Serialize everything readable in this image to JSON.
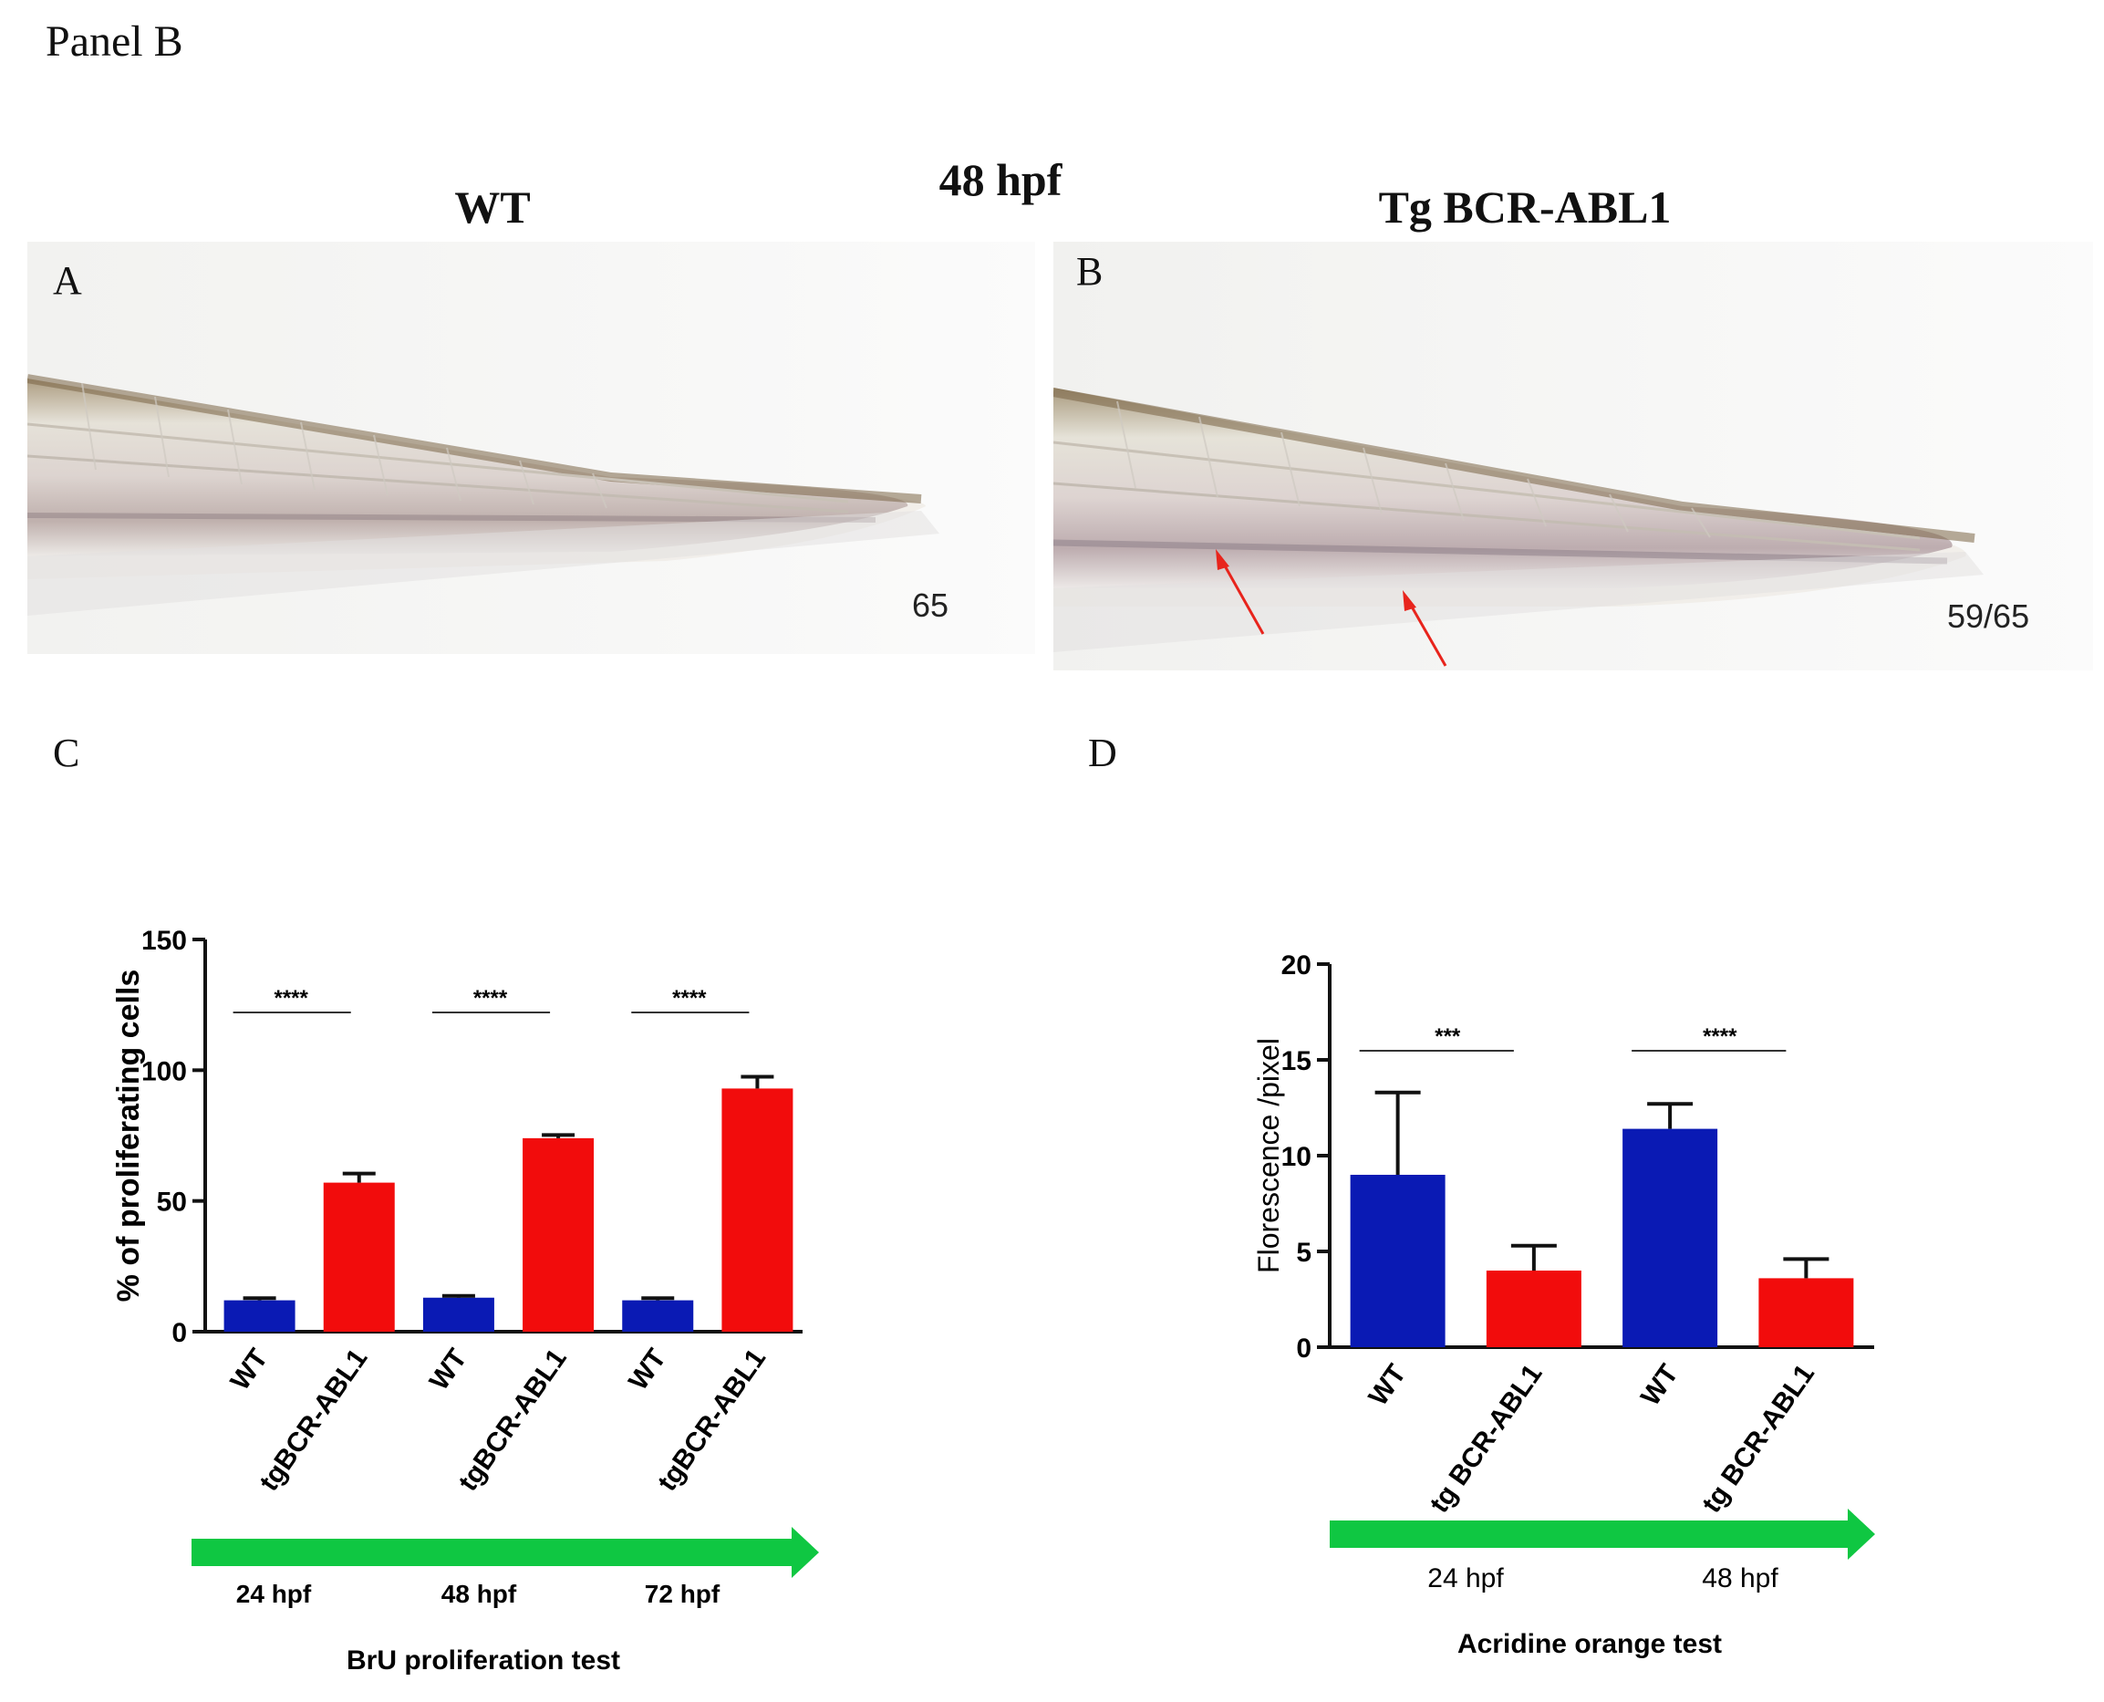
{
  "panel": {
    "title": "Panel B",
    "time_title": "48 hpf",
    "wt_title": "WT",
    "tg_title": "Tg BCR-ABL1",
    "letters": [
      "A",
      "B",
      "C",
      "D"
    ],
    "photo_a_count": "65",
    "photo_b_count": "59/65"
  },
  "colors": {
    "wt": "#0a1ab4",
    "tg": "#f20c0c",
    "arrow": "#0fc742",
    "annot_arrow": "#e8241c"
  },
  "chart_data": [
    {
      "type": "bar",
      "id": "C",
      "ylabel": "% of proliferating cells",
      "ylim": [
        0,
        150
      ],
      "yticks": [
        0,
        50,
        100,
        150
      ],
      "categories": [
        "WT",
        "tgBCR-ABL1",
        "WT",
        "tgBCR-ABL1",
        "WT",
        "tgBCR-ABL1"
      ],
      "values": [
        12,
        57,
        13,
        74,
        12,
        93
      ],
      "errors": [
        0.8,
        3.5,
        0.7,
        1.2,
        0.8,
        4.5
      ],
      "bar_groups": [
        "wt",
        "tg",
        "wt",
        "tg",
        "wt",
        "tg"
      ],
      "significance": [
        "****",
        "****",
        "****"
      ],
      "timepoints": [
        "24 hpf",
        "48 hpf",
        "72 hpf"
      ],
      "caption": "BrU proliferation test"
    },
    {
      "type": "bar",
      "id": "D",
      "ylabel": "Florescence /pixel",
      "ylim": [
        0,
        20
      ],
      "yticks": [
        0,
        5,
        10,
        15,
        20
      ],
      "categories": [
        "WT",
        "tg BCR-ABL1",
        "WT",
        "tg BCR-ABL1"
      ],
      "values": [
        9,
        4,
        11.4,
        3.6
      ],
      "errors": [
        4.3,
        1.3,
        1.3,
        1.0
      ],
      "bar_groups": [
        "wt",
        "tg",
        "wt",
        "tg"
      ],
      "significance": [
        "***",
        "****"
      ],
      "timepoints": [
        "24 hpf",
        "48 hpf"
      ],
      "caption": "Acridine orange test"
    }
  ]
}
